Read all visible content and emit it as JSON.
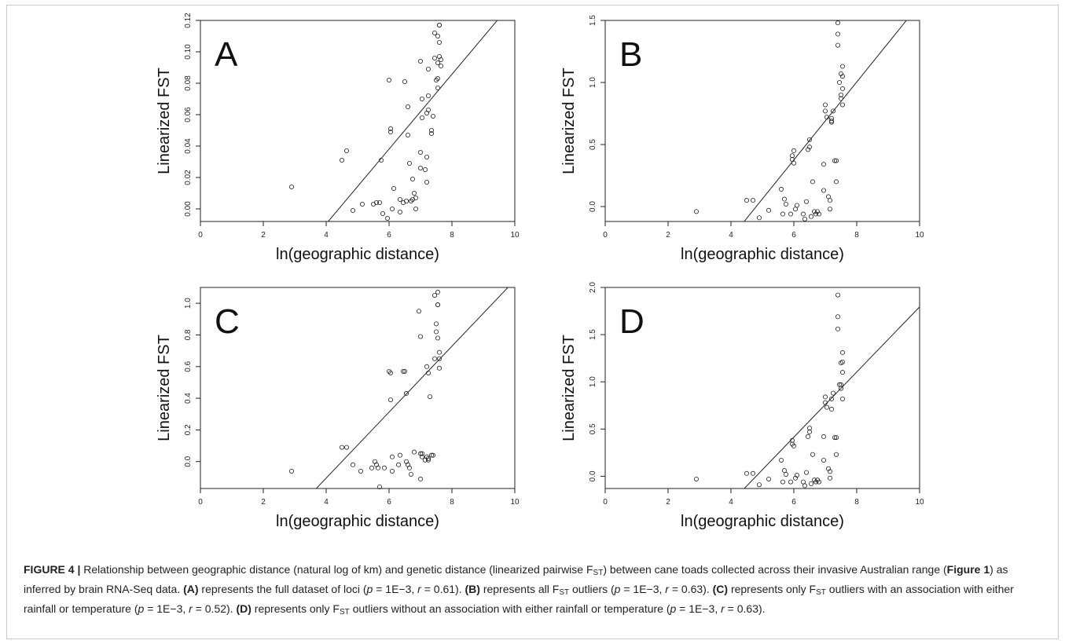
{
  "figure": {
    "caption": {
      "label": "FIGURE 4 |",
      "parts": [
        {
          "t": " Relationship between geographic distance (natural log of km) and genetic distance (linearized pairwise F"
        },
        {
          "sub": "ST"
        },
        {
          "t": ") between cane toads collected across their invasive Australian range ("
        },
        {
          "b": "Figure 1"
        },
        {
          "t": ") as inferred by brain RNA-Seq data. "
        },
        {
          "b": "(A)"
        },
        {
          "t": " represents the full dataset of loci ("
        },
        {
          "i": "p"
        },
        {
          "t": " = 1E−3, "
        },
        {
          "i": "r"
        },
        {
          "t": " = 0.61). "
        },
        {
          "b": "(B)"
        },
        {
          "t": " represents all F"
        },
        {
          "sub": "ST"
        },
        {
          "t": " outliers ("
        },
        {
          "i": "p"
        },
        {
          "t": " = 1E−3, "
        },
        {
          "i": "r"
        },
        {
          "t": " = 0.63). "
        },
        {
          "b": "(C)"
        },
        {
          "t": " represents only F"
        },
        {
          "sub": "ST"
        },
        {
          "t": " outliers with an association with either rainfall or temperature ("
        },
        {
          "i": "p"
        },
        {
          "t": " = 1E−3, "
        },
        {
          "i": "r"
        },
        {
          "t": " = 0.52). "
        },
        {
          "b": "(D)"
        },
        {
          "t": " represents only F"
        },
        {
          "sub": "ST"
        },
        {
          "t": " outliers without an association with either rainfall or temperature ("
        },
        {
          "i": "p"
        },
        {
          "t": " = 1E−3, "
        },
        {
          "i": "r"
        },
        {
          "t": " = 0.63)."
        }
      ]
    }
  },
  "chart_data": [
    {
      "type": "scatter",
      "panel_label": "A",
      "xlabel": "ln(geographic distance)",
      "ylabel": "Linearized FST",
      "xlim": [
        0,
        10
      ],
      "ylim": [
        -0.008,
        0.12
      ],
      "xticks": [
        0,
        2,
        4,
        6,
        8,
        10
      ],
      "yticks": [
        0.0,
        0.02,
        0.04,
        0.06,
        0.08,
        0.1,
        0.12
      ],
      "ytick_labels": [
        "0.00",
        "0.02",
        "0.04",
        "0.06",
        "0.08",
        "0.10",
        "0.12"
      ],
      "fit_line": {
        "slope": 0.0238,
        "intercept": -0.1047
      },
      "points": [
        [
          2.9,
          0.014
        ],
        [
          4.5,
          0.031
        ],
        [
          4.65,
          0.037
        ],
        [
          4.85,
          -0.001
        ],
        [
          5.15,
          0.003
        ],
        [
          5.5,
          0.003
        ],
        [
          5.6,
          0.004
        ],
        [
          5.7,
          0.004
        ],
        [
          5.75,
          0.031
        ],
        [
          5.8,
          -0.003
        ],
        [
          5.95,
          -0.006
        ],
        [
          6.0,
          0.082
        ],
        [
          6.05,
          0.049
        ],
        [
          6.05,
          0.051
        ],
        [
          6.1,
          0.0
        ],
        [
          6.15,
          0.013
        ],
        [
          6.35,
          0.006
        ],
        [
          6.35,
          -0.002
        ],
        [
          6.45,
          0.004
        ],
        [
          6.5,
          0.081
        ],
        [
          6.55,
          0.005
        ],
        [
          6.6,
          0.065
        ],
        [
          6.6,
          0.047
        ],
        [
          6.65,
          0.029
        ],
        [
          6.7,
          0.005
        ],
        [
          6.75,
          0.006
        ],
        [
          6.75,
          0.019
        ],
        [
          6.8,
          0.01
        ],
        [
          6.85,
          0.0
        ],
        [
          6.85,
          0.007
        ],
        [
          7.0,
          0.094
        ],
        [
          7.0,
          0.036
        ],
        [
          7.0,
          0.026
        ],
        [
          7.05,
          0.07
        ],
        [
          7.05,
          0.058
        ],
        [
          7.15,
          0.025
        ],
        [
          7.2,
          0.061
        ],
        [
          7.2,
          0.033
        ],
        [
          7.2,
          0.017
        ],
        [
          7.25,
          0.072
        ],
        [
          7.25,
          0.089
        ],
        [
          7.25,
          0.063
        ],
        [
          7.35,
          0.05
        ],
        [
          7.35,
          0.048
        ],
        [
          7.4,
          0.059
        ],
        [
          7.45,
          0.112
        ],
        [
          7.45,
          0.096
        ],
        [
          7.5,
          0.082
        ],
        [
          7.55,
          0.11
        ],
        [
          7.55,
          0.093
        ],
        [
          7.55,
          0.083
        ],
        [
          7.55,
          0.077
        ],
        [
          7.6,
          0.117
        ],
        [
          7.6,
          0.117
        ],
        [
          7.6,
          0.106
        ],
        [
          7.6,
          0.097
        ],
        [
          7.65,
          0.095
        ],
        [
          7.65,
          0.091
        ]
      ]
    },
    {
      "type": "scatter",
      "panel_label": "B",
      "xlabel": "ln(geographic distance)",
      "ylabel": "Linearized FST",
      "xlim": [
        0,
        10
      ],
      "ylim": [
        -0.12,
        1.5
      ],
      "xticks": [
        0,
        2,
        4,
        6,
        8,
        10
      ],
      "yticks": [
        0.0,
        0.5,
        1.0,
        1.5
      ],
      "ytick_labels": [
        "0.0",
        "0.5",
        "1.0",
        "1.5"
      ],
      "fit_line": {
        "slope": 0.314,
        "intercept": -1.508
      },
      "points": [
        [
          2.9,
          -0.04
        ],
        [
          4.5,
          0.05
        ],
        [
          4.7,
          0.05
        ],
        [
          4.9,
          -0.09
        ],
        [
          5.2,
          -0.03
        ],
        [
          5.6,
          0.14
        ],
        [
          5.65,
          -0.06
        ],
        [
          5.7,
          0.06
        ],
        [
          5.75,
          0.02
        ],
        [
          5.9,
          -0.06
        ],
        [
          5.95,
          0.38
        ],
        [
          5.95,
          0.41
        ],
        [
          6.0,
          0.35
        ],
        [
          6.0,
          0.45
        ],
        [
          6.05,
          -0.02
        ],
        [
          6.1,
          0.01
        ],
        [
          6.3,
          -0.06
        ],
        [
          6.35,
          -0.1
        ],
        [
          6.4,
          0.04
        ],
        [
          6.45,
          0.46
        ],
        [
          6.5,
          0.48
        ],
        [
          6.5,
          0.54
        ],
        [
          6.55,
          -0.08
        ],
        [
          6.6,
          0.2
        ],
        [
          6.65,
          -0.04
        ],
        [
          6.7,
          -0.06
        ],
        [
          6.75,
          -0.04
        ],
        [
          6.8,
          -0.06
        ],
        [
          6.95,
          0.34
        ],
        [
          6.95,
          0.13
        ],
        [
          7.0,
          0.77
        ],
        [
          7.0,
          0.82
        ],
        [
          7.05,
          0.72
        ],
        [
          7.1,
          0.08
        ],
        [
          7.15,
          0.05
        ],
        [
          7.2,
          0.71
        ],
        [
          7.2,
          0.69
        ],
        [
          7.2,
          0.68
        ],
        [
          7.25,
          0.77
        ],
        [
          7.3,
          0.37
        ],
        [
          7.35,
          0.37
        ],
        [
          7.35,
          0.2
        ],
        [
          7.4,
          1.48
        ],
        [
          7.4,
          1.39
        ],
        [
          7.4,
          1.3
        ],
        [
          7.45,
          1.0
        ],
        [
          7.5,
          1.07
        ],
        [
          7.5,
          0.87
        ],
        [
          7.5,
          0.9
        ],
        [
          7.55,
          1.13
        ],
        [
          7.55,
          1.05
        ],
        [
          7.55,
          0.95
        ],
        [
          7.55,
          0.82
        ],
        [
          7.15,
          -0.02
        ]
      ]
    },
    {
      "type": "scatter",
      "panel_label": "C",
      "xlabel": "ln(geographic distance)",
      "ylabel": "Linearized FST",
      "xlim": [
        0,
        10
      ],
      "ylim": [
        -0.17,
        1.1
      ],
      "xticks": [
        0,
        2,
        4,
        6,
        8,
        10
      ],
      "yticks": [
        0.0,
        0.2,
        0.4,
        0.6,
        0.8,
        1.0
      ],
      "ytick_labels": [
        "0.0",
        "0.2",
        "0.4",
        "0.6",
        "0.8",
        "1.0"
      ],
      "fit_line": {
        "slope": 0.2083,
        "intercept": -0.9375
      },
      "points": [
        [
          2.9,
          -0.06
        ],
        [
          4.5,
          0.09
        ],
        [
          4.65,
          0.09
        ],
        [
          4.85,
          -0.02
        ],
        [
          5.1,
          -0.06
        ],
        [
          5.45,
          -0.04
        ],
        [
          5.55,
          0.0
        ],
        [
          5.6,
          -0.02
        ],
        [
          5.65,
          -0.04
        ],
        [
          5.7,
          -0.16
        ],
        [
          5.85,
          -0.04
        ],
        [
          6.0,
          0.57
        ],
        [
          6.05,
          0.56
        ],
        [
          6.05,
          0.39
        ],
        [
          6.1,
          -0.06
        ],
        [
          6.1,
          0.03
        ],
        [
          6.3,
          -0.02
        ],
        [
          6.35,
          0.04
        ],
        [
          6.45,
          0.57
        ],
        [
          6.5,
          0.57
        ],
        [
          6.55,
          0.43
        ],
        [
          6.55,
          0.0
        ],
        [
          6.6,
          -0.02
        ],
        [
          6.65,
          -0.04
        ],
        [
          6.7,
          -0.08
        ],
        [
          6.8,
          0.06
        ],
        [
          6.95,
          0.95
        ],
        [
          7.0,
          0.79
        ],
        [
          7.0,
          0.05
        ],
        [
          7.0,
          -0.11
        ],
        [
          7.05,
          0.03
        ],
        [
          7.15,
          0.01
        ],
        [
          7.2,
          0.6
        ],
        [
          7.2,
          0.03
        ],
        [
          7.25,
          0.56
        ],
        [
          7.25,
          0.01
        ],
        [
          7.3,
          0.41
        ],
        [
          7.35,
          0.04
        ],
        [
          7.4,
          0.04
        ],
        [
          7.45,
          0.65
        ],
        [
          7.45,
          1.05
        ],
        [
          7.5,
          0.87
        ],
        [
          7.5,
          0.82
        ],
        [
          7.55,
          1.07
        ],
        [
          7.55,
          0.99
        ],
        [
          7.55,
          0.99
        ],
        [
          7.55,
          0.78
        ],
        [
          7.6,
          0.69
        ],
        [
          7.6,
          0.59
        ],
        [
          7.6,
          0.65
        ],
        [
          7.05,
          0.05
        ],
        [
          7.25,
          0.02
        ]
      ]
    },
    {
      "type": "scatter",
      "panel_label": "D",
      "xlabel": "ln(geographic distance)",
      "ylabel": "Linearized FST",
      "xlim": [
        0,
        10
      ],
      "ylim": [
        -0.13,
        2.0
      ],
      "xticks": [
        0,
        2,
        4,
        6,
        8,
        10
      ],
      "yticks": [
        0.0,
        0.5,
        1.0,
        1.5,
        2.0
      ],
      "ytick_labels": [
        "0.0",
        "0.5",
        "1.0",
        "1.5",
        "2.0"
      ],
      "fit_line": {
        "slope": 0.345,
        "intercept": -1.656
      },
      "points": [
        [
          2.9,
          -0.03
        ],
        [
          4.5,
          0.03
        ],
        [
          4.7,
          0.03
        ],
        [
          4.9,
          -0.09
        ],
        [
          5.2,
          -0.03
        ],
        [
          5.6,
          0.17
        ],
        [
          5.65,
          -0.06
        ],
        [
          5.7,
          0.06
        ],
        [
          5.75,
          0.02
        ],
        [
          5.9,
          -0.06
        ],
        [
          5.95,
          0.34
        ],
        [
          5.95,
          0.38
        ],
        [
          6.0,
          0.32
        ],
        [
          6.05,
          -0.02
        ],
        [
          6.1,
          0.01
        ],
        [
          6.3,
          -0.06
        ],
        [
          6.35,
          -0.1
        ],
        [
          6.4,
          0.04
        ],
        [
          6.45,
          0.42
        ],
        [
          6.5,
          0.47
        ],
        [
          6.5,
          0.51
        ],
        [
          6.55,
          -0.08
        ],
        [
          6.6,
          0.23
        ],
        [
          6.65,
          -0.04
        ],
        [
          6.7,
          -0.06
        ],
        [
          6.75,
          -0.04
        ],
        [
          6.8,
          -0.06
        ],
        [
          6.95,
          0.42
        ],
        [
          6.95,
          0.17
        ],
        [
          7.0,
          0.78
        ],
        [
          7.0,
          0.84
        ],
        [
          7.05,
          0.73
        ],
        [
          7.1,
          0.08
        ],
        [
          7.15,
          0.05
        ],
        [
          7.2,
          0.71
        ],
        [
          7.2,
          0.82
        ],
        [
          7.25,
          0.88
        ],
        [
          7.3,
          0.41
        ],
        [
          7.35,
          0.41
        ],
        [
          7.35,
          0.23
        ],
        [
          7.4,
          1.92
        ],
        [
          7.4,
          1.69
        ],
        [
          7.4,
          1.56
        ],
        [
          7.45,
          0.97
        ],
        [
          7.5,
          1.2
        ],
        [
          7.5,
          0.93
        ],
        [
          7.5,
          0.97
        ],
        [
          7.55,
          1.31
        ],
        [
          7.55,
          1.21
        ],
        [
          7.55,
          1.1
        ],
        [
          7.55,
          0.82
        ],
        [
          7.15,
          -0.02
        ]
      ]
    }
  ]
}
